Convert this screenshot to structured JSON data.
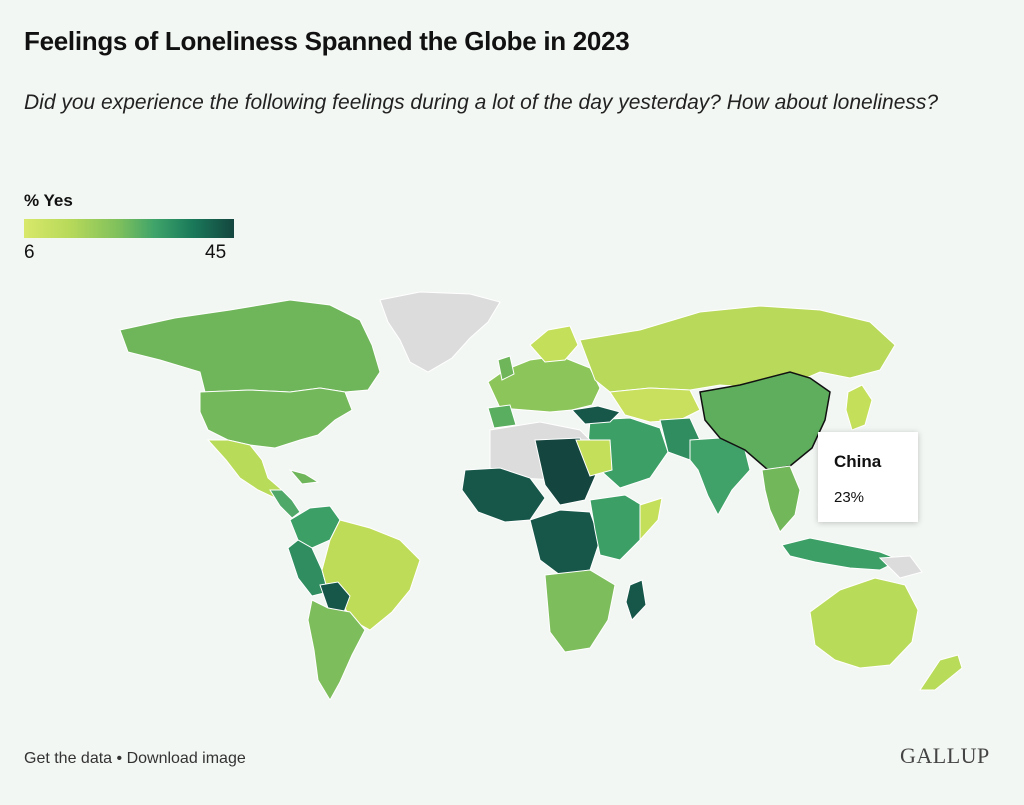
{
  "title": "Feelings of Loneliness Spanned the Globe in 2023",
  "subtitle": "Did you experience the following feelings during a lot of the day yesterday? How about loneliness?",
  "legend": {
    "title": "% Yes",
    "min": "6",
    "max": "45"
  },
  "tooltip": {
    "country": "China",
    "value": "23%"
  },
  "footer": {
    "get_data": "Get the data",
    "separator": " • ",
    "download": "Download image"
  },
  "logo": "GALLUP",
  "colors": {
    "background": "#f3f7f3",
    "no_data": "#dcdcdc",
    "low": "#d8e86a",
    "mid": "#7fc05c",
    "high": "#14463f"
  }
}
